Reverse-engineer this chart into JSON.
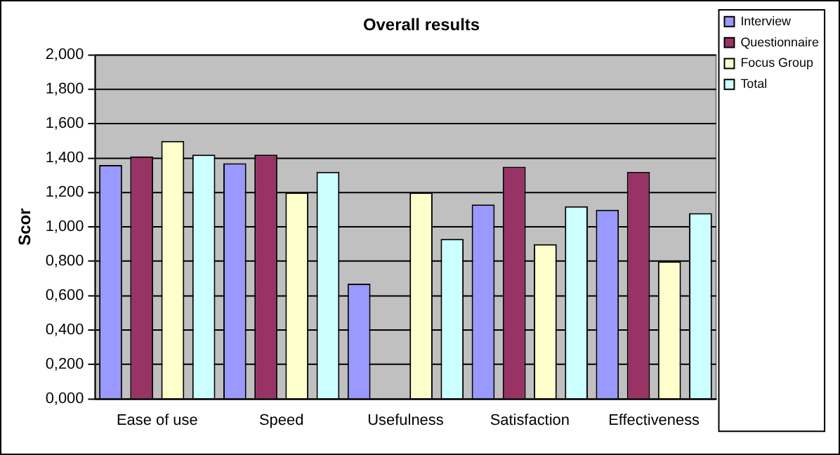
{
  "chart_data": {
    "type": "bar",
    "title": "Overall results",
    "ylabel": "Scor",
    "categories": [
      "Ease of use",
      "Speed",
      "Usefulness",
      "Satisfaction",
      "Effectiveness"
    ],
    "series": [
      {
        "name": "Interview",
        "color": "#9999ff",
        "values": [
          1.36,
          1.37,
          0.67,
          1.13,
          1.1
        ]
      },
      {
        "name": "Questionnaire",
        "color": "#993366",
        "values": [
          1.41,
          1.42,
          null,
          1.35,
          1.32
        ]
      },
      {
        "name": "Focus Group",
        "color": "#ffffcc",
        "values": [
          1.5,
          1.2,
          1.2,
          0.9,
          0.8
        ]
      },
      {
        "name": "Total",
        "color": "#ccffff",
        "values": [
          1.42,
          1.32,
          0.93,
          1.12,
          1.08
        ]
      }
    ],
    "ylim": [
      0,
      2
    ],
    "yticks": [
      {
        "value": 0,
        "label": "0,000"
      },
      {
        "value": 0.2,
        "label": "0,200"
      },
      {
        "value": 0.4,
        "label": "0,400"
      },
      {
        "value": 0.6,
        "label": "0,600"
      },
      {
        "value": 0.8,
        "label": "0,800"
      },
      {
        "value": 1,
        "label": "1,000"
      },
      {
        "value": 1.2,
        "label": "1,200"
      },
      {
        "value": 1.4,
        "label": "1,400"
      },
      {
        "value": 1.6,
        "label": "1,600"
      },
      {
        "value": 1.8,
        "label": "1,800"
      },
      {
        "value": 2,
        "label": "2,000"
      }
    ],
    "grid": "y",
    "legend": "right"
  }
}
